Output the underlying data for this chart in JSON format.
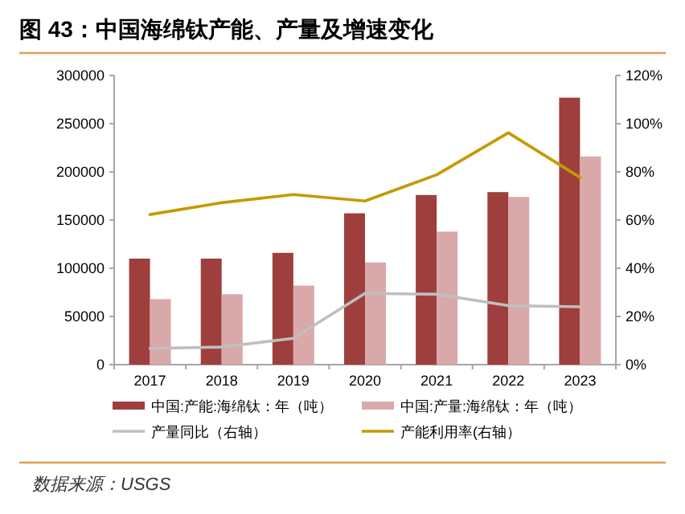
{
  "chart_data": {
    "type": "bar",
    "title": "图 43：中国海绵钛产能、产量及增速变化",
    "categories": [
      "2017",
      "2018",
      "2019",
      "2020",
      "2021",
      "2022",
      "2023"
    ],
    "series": [
      {
        "name": "中国:产能:海绵钛：年（吨）",
        "color": "#9e3f3d",
        "values": [
          110000,
          110000,
          116000,
          157000,
          176000,
          179000,
          277000
        ]
      },
      {
        "name": "中国:产量:海绵钛：年（吨）",
        "color": "#d9a8a8",
        "values": [
          68000,
          73000,
          82000,
          106000,
          138000,
          174000,
          216000
        ]
      },
      {
        "name": "产量同比（右轴）",
        "type": "line",
        "axis": "y2",
        "color": "#bfbfbf",
        "values": [
          6.7,
          7.3,
          10.9,
          29.6,
          29.2,
          24.5,
          24
        ]
      },
      {
        "name": "产能利用率(右轴）",
        "type": "line",
        "axis": "y2",
        "color": "#c49a00",
        "values": [
          62.3,
          67.2,
          70.6,
          67.9,
          78.8,
          96.2,
          77.7
        ]
      }
    ],
    "ylim": [
      0,
      300000
    ],
    "yticks": [
      0,
      50000,
      100000,
      150000,
      200000,
      250000,
      300000
    ],
    "y2lim": [
      0,
      120
    ],
    "y2ticks": [
      {
        "value": 0,
        "label": "0%"
      },
      {
        "value": 20,
        "label": "20%"
      },
      {
        "value": 40,
        "label": "40%"
      },
      {
        "value": 60,
        "label": "60%"
      },
      {
        "value": 80,
        "label": "80%"
      },
      {
        "value": 100,
        "label": "100%"
      },
      {
        "value": 120,
        "label": "120%"
      }
    ],
    "legend": "bottom",
    "grid": false,
    "annotations": [
      "数据来源：USGS"
    ]
  }
}
